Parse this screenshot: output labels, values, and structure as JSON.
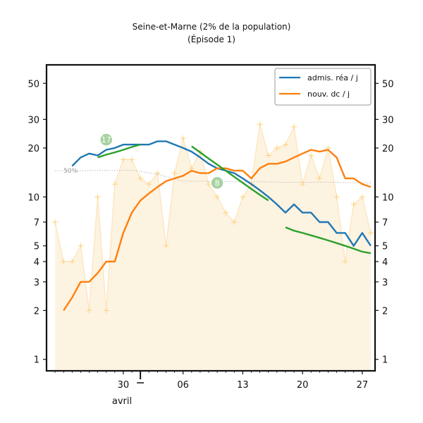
{
  "chart_data": {
    "type": "line",
    "title": "Seine-et-Marne (2% de la population)",
    "subtitle": "(Épisode 1)",
    "x_tick_labels": [
      "30",
      "06",
      "13",
      "20",
      "27"
    ],
    "x_month_label": "avril",
    "y_scale": "log",
    "ylim": [
      0.85,
      65
    ],
    "y_ticks": [
      1,
      2,
      3,
      4,
      5,
      7,
      10,
      20,
      30,
      50
    ],
    "legend_position": "top-right",
    "colors": {
      "adm": "#1f77b4",
      "dc": "#ff7f0e",
      "fit": "#2ca02c",
      "raw": "#ffd27a",
      "area": "#fdf3e1"
    },
    "series": [
      {
        "name": "admis. réa / j",
        "x": [
          "2020-03-24",
          "2020-03-25",
          "2020-03-26",
          "2020-03-27",
          "2020-03-28",
          "2020-03-29",
          "2020-03-30",
          "2020-03-31",
          "2020-04-01",
          "2020-04-02",
          "2020-04-03",
          "2020-04-04",
          "2020-04-05",
          "2020-04-06",
          "2020-04-07",
          "2020-04-08",
          "2020-04-09",
          "2020-04-10",
          "2020-04-11",
          "2020-04-12",
          "2020-04-13",
          "2020-04-14",
          "2020-04-15",
          "2020-04-16",
          "2020-04-17",
          "2020-04-18",
          "2020-04-19",
          "2020-04-20",
          "2020-04-21",
          "2020-04-22",
          "2020-04-23",
          "2020-04-24",
          "2020-04-25",
          "2020-04-26",
          "2020-04-27",
          "2020-04-28"
        ],
        "values": [
          15.5,
          17.5,
          18.5,
          18,
          19.5,
          20,
          21,
          21,
          21,
          21,
          22,
          22,
          21,
          20,
          19,
          17.5,
          16,
          15,
          14.5,
          14,
          13,
          12,
          11,
          10,
          9,
          8,
          9,
          8,
          8,
          7,
          7,
          6,
          6,
          5,
          6,
          5
        ]
      },
      {
        "name": "nouv. dc / j",
        "x": [
          "2020-03-23",
          "2020-03-24",
          "2020-03-25",
          "2020-03-26",
          "2020-03-27",
          "2020-03-28",
          "2020-03-29",
          "2020-03-30",
          "2020-03-31",
          "2020-04-01",
          "2020-04-02",
          "2020-04-03",
          "2020-04-04",
          "2020-04-05",
          "2020-04-06",
          "2020-04-07",
          "2020-04-08",
          "2020-04-09",
          "2020-04-10",
          "2020-04-11",
          "2020-04-12",
          "2020-04-13",
          "2020-04-14",
          "2020-04-15",
          "2020-04-16",
          "2020-04-17",
          "2020-04-18",
          "2020-04-19",
          "2020-04-20",
          "2020-04-21",
          "2020-04-22",
          "2020-04-23",
          "2020-04-24",
          "2020-04-25",
          "2020-04-26",
          "2020-04-27",
          "2020-04-28"
        ],
        "values": [
          2,
          2.4,
          3,
          3,
          3.4,
          4,
          4,
          6,
          8,
          9.5,
          10.5,
          11.5,
          12.5,
          13,
          13.5,
          14.5,
          14,
          14,
          15,
          15,
          14.5,
          14.5,
          13,
          15,
          16,
          16,
          16.5,
          17.5,
          18.5,
          19.5,
          19,
          19.5,
          17.5,
          13,
          13,
          12,
          11.5
        ]
      },
      {
        "x": [
          "2020-03-27",
          "2020-03-28",
          "2020-03-29",
          "2020-03-30",
          "2020-03-31",
          "2020-04-01"
        ],
        "values": [
          17.5,
          18.2,
          18.8,
          19.5,
          20.3,
          21
        ]
      },
      {
        "x": [
          "2020-04-07",
          "2020-04-08",
          "2020-04-09",
          "2020-04-10",
          "2020-04-11",
          "2020-04-12",
          "2020-04-13",
          "2020-04-14",
          "2020-04-15",
          "2020-04-16"
        ],
        "values": [
          20.5,
          18.8,
          17.2,
          15.8,
          14.5,
          13.3,
          12.2,
          11.2,
          10.3,
          9.5
        ]
      },
      {
        "x": [
          "2020-04-18",
          "2020-04-19",
          "2020-04-20",
          "2020-04-21",
          "2020-04-22",
          "2020-04-23",
          "2020-04-24",
          "2020-04-25",
          "2020-04-26",
          "2020-04-27",
          "2020-04-28"
        ],
        "values": [
          6.5,
          6.2,
          6,
          5.8,
          5.6,
          5.4,
          5.2,
          5,
          4.8,
          4.6,
          4.5
        ]
      },
      {
        "x": [
          "2020-03-22",
          "2020-03-23",
          "2020-03-24",
          "2020-03-25",
          "2020-03-26",
          "2020-03-27",
          "2020-03-28",
          "2020-03-29",
          "2020-03-30",
          "2020-03-31",
          "2020-04-01",
          "2020-04-02",
          "2020-04-03",
          "2020-04-04",
          "2020-04-05",
          "2020-04-06",
          "2020-04-07",
          "2020-04-08",
          "2020-04-09",
          "2020-04-10",
          "2020-04-11",
          "2020-04-12",
          "2020-04-13",
          "2020-04-14",
          "2020-04-15",
          "2020-04-16",
          "2020-04-17",
          "2020-04-18",
          "2020-04-19",
          "2020-04-20",
          "2020-04-21",
          "2020-04-22",
          "2020-04-23",
          "2020-04-24",
          "2020-04-25",
          "2020-04-26",
          "2020-04-27",
          "2020-04-28"
        ],
        "values": [
          7,
          4,
          4,
          5,
          2,
          10,
          2,
          12,
          17,
          17,
          13,
          12,
          14,
          5,
          14,
          23,
          15,
          19,
          12,
          10,
          8,
          7,
          10,
          12,
          28,
          18,
          20,
          21,
          27,
          12,
          18,
          13,
          20,
          10,
          4,
          9,
          10,
          6
        ]
      },
      {
        "x": [
          "2020-03-22",
          "2020-03-25",
          "2020-03-28",
          "2020-03-31",
          "2020-04-03",
          "2020-04-06",
          "2020-04-09",
          "2020-04-12",
          "2020-04-15",
          "2020-04-18",
          "2020-04-21",
          "2020-04-24",
          "2020-04-27",
          "2020-04-28"
        ],
        "values": [
          14.5,
          14.5,
          14.6,
          14.6,
          13.8,
          12.5,
          12.5,
          12.4,
          12.4,
          12.3,
          12.3,
          12.3,
          12.2,
          12.2
        ]
      }
    ],
    "annotations": [
      {
        "text": "17",
        "x": "2020-03-28",
        "y": 22.5
      },
      {
        "text": "8",
        "x": "2020-04-10",
        "y": 12.2
      },
      {
        "text": "50%",
        "x": "2020-03-23",
        "y": 14.5
      }
    ]
  }
}
